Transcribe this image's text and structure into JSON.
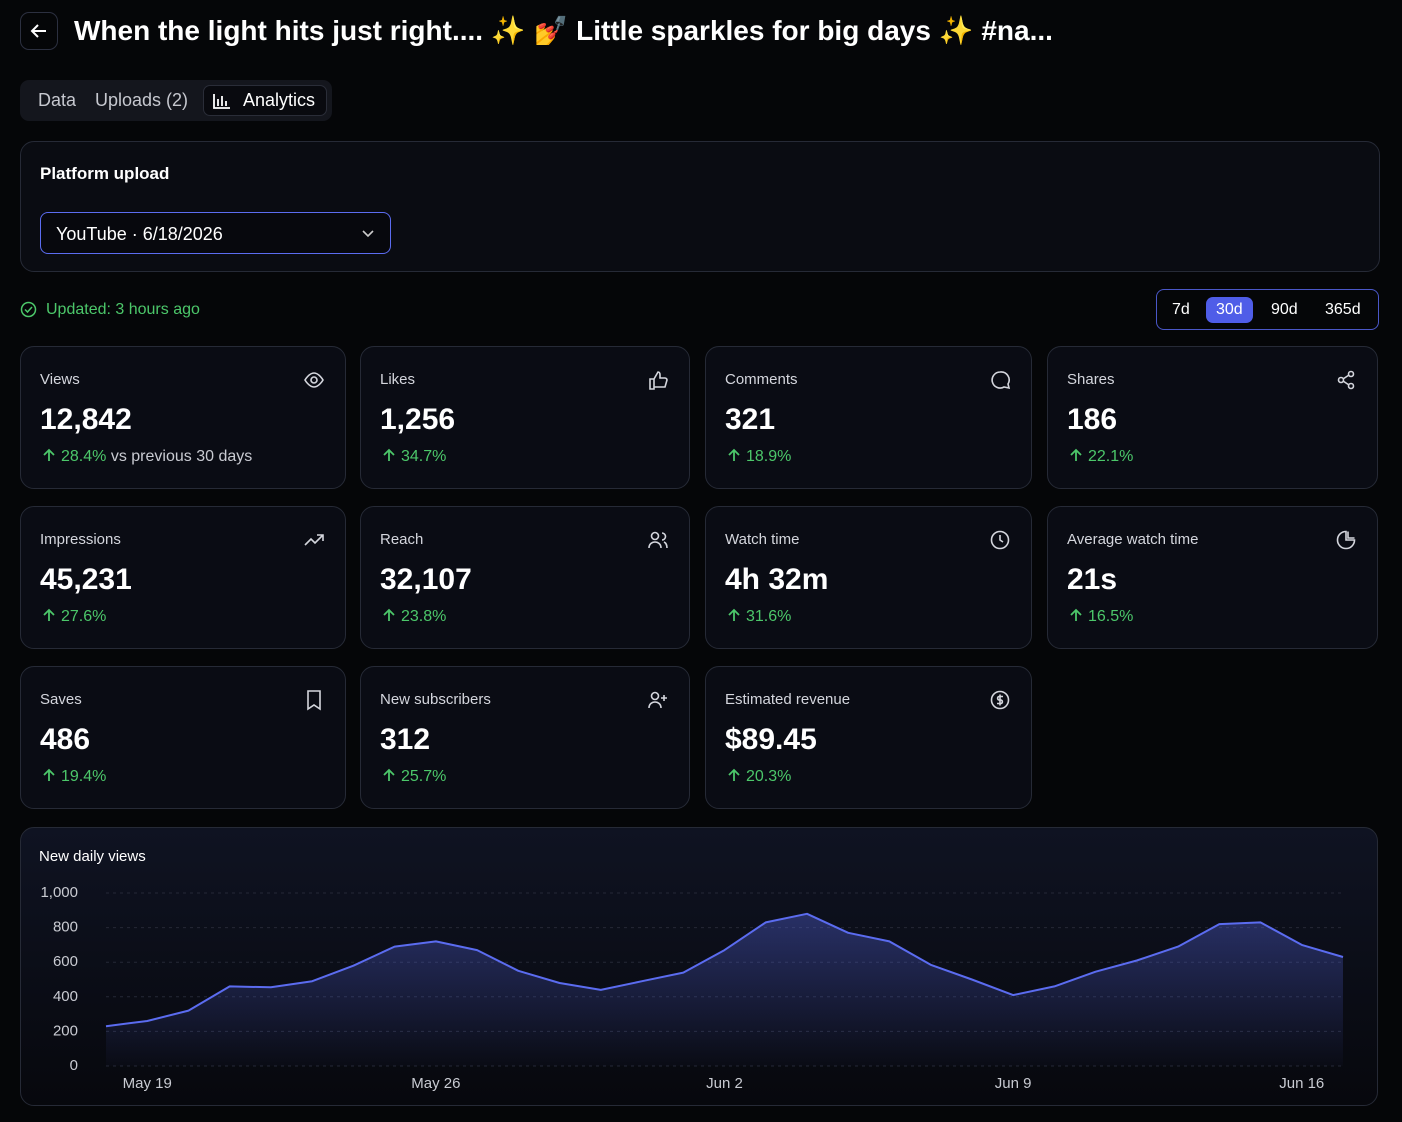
{
  "header": {
    "title": "When the light hits just right.... ✨ 💅 Little sparkles for big days ✨ #na..."
  },
  "tabs": [
    "Data",
    "Uploads (2)",
    "Analytics"
  ],
  "platform": {
    "label": "Platform upload",
    "selected": "YouTube · 6/18/2026"
  },
  "status": "Updated: 3 hours ago",
  "ranges": [
    "7d",
    "30d",
    "90d",
    "365d"
  ],
  "cards": [
    {
      "label": "Views",
      "value": "12,842",
      "change": "28.4%",
      "note": "vs previous 30 days"
    },
    {
      "label": "Likes",
      "value": "1,256",
      "change": "34.7%"
    },
    {
      "label": "Comments",
      "value": "321",
      "change": "18.9%"
    },
    {
      "label": "Shares",
      "value": "186",
      "change": "22.1%"
    },
    {
      "label": "Impressions",
      "value": "45,231",
      "change": "27.6%"
    },
    {
      "label": "Reach",
      "value": "32,107",
      "change": "23.8%"
    },
    {
      "label": "Watch time",
      "value": "4h 32m",
      "change": "31.6%"
    },
    {
      "label": "Average watch time",
      "value": "21s",
      "change": "16.5%"
    },
    {
      "label": "Saves",
      "value": "486",
      "change": "19.4%"
    },
    {
      "label": "New subscribers",
      "value": "312",
      "change": "25.7%"
    },
    {
      "label": "Estimated revenue",
      "value": "$89.45",
      "change": "20.3%"
    }
  ],
  "chart_data": {
    "type": "line",
    "title": "New daily views",
    "categories": [
      null,
      "May 19",
      null,
      null,
      null,
      null,
      null,
      null,
      "May 26",
      null,
      null,
      null,
      null,
      null,
      null,
      "Jun 2",
      null,
      null,
      null,
      null,
      null,
      null,
      "Jun 9",
      null,
      null,
      null,
      null,
      null,
      null,
      "Jun 16",
      null
    ],
    "series": [
      {
        "name": "Views",
        "color": "#5b6cf0",
        "values": [
          230,
          260,
          320,
          460,
          455,
          490,
          580,
          690,
          720,
          670,
          550,
          480,
          440,
          490,
          540,
          670,
          830,
          880,
          770,
          720,
          585,
          500,
          410,
          460,
          545,
          610,
          690,
          820,
          830,
          700,
          630
        ]
      }
    ],
    "ylim": [
      0,
      1000
    ],
    "yticks": [
      0,
      200,
      400,
      600,
      800,
      {
        "value": 1000,
        "label": "1,000"
      }
    ],
    "grid": true
  }
}
